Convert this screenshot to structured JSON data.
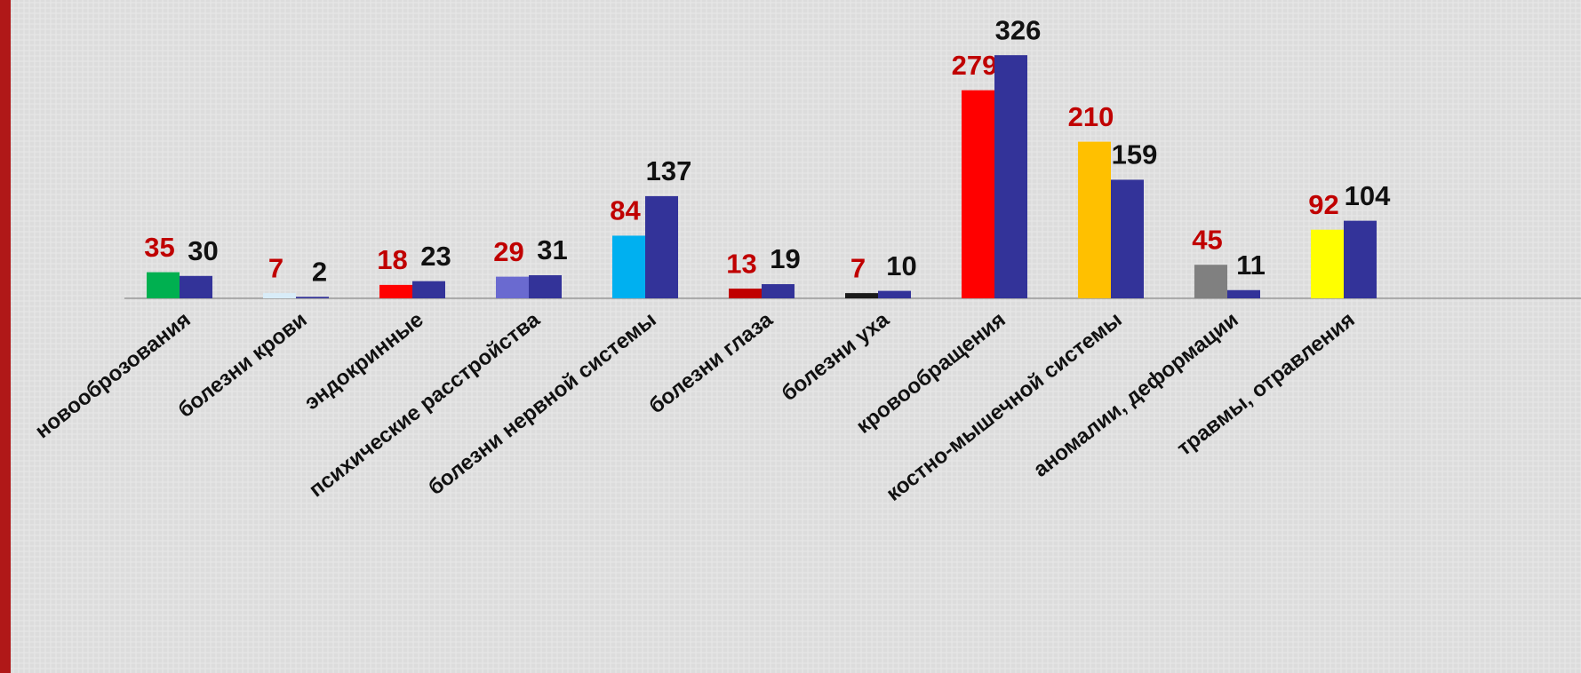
{
  "chart_data": {
    "type": "bar",
    "categories": [
      "новооброзования",
      "болезни крови",
      "эндокринные",
      "психические расстройства",
      "болезни нервной системы",
      "болезни глаза",
      "болезни уха",
      "кровообращения",
      "костно-мышечной системы",
      "аномалии, деформации",
      "травмы, отравления"
    ],
    "series": [
      {
        "colors": [
          "#00b050",
          "#d8ecf8",
          "#ff0000",
          "#6a6ad0",
          "#00b0f0",
          "#c00000",
          "#1a1a1a",
          "#ff0000",
          "#ffc000",
          "#808080",
          "#ffff00"
        ],
        "label_color": "#c00000",
        "values": [
          35,
          7,
          18,
          29,
          84,
          13,
          7,
          279,
          210,
          45,
          92
        ]
      },
      {
        "color": "#333399",
        "label_color": "#111111",
        "values": [
          30,
          2,
          23,
          31,
          137,
          19,
          10,
          326,
          159,
          11,
          104
        ]
      }
    ],
    "ylim": [
      0,
      400
    ]
  }
}
